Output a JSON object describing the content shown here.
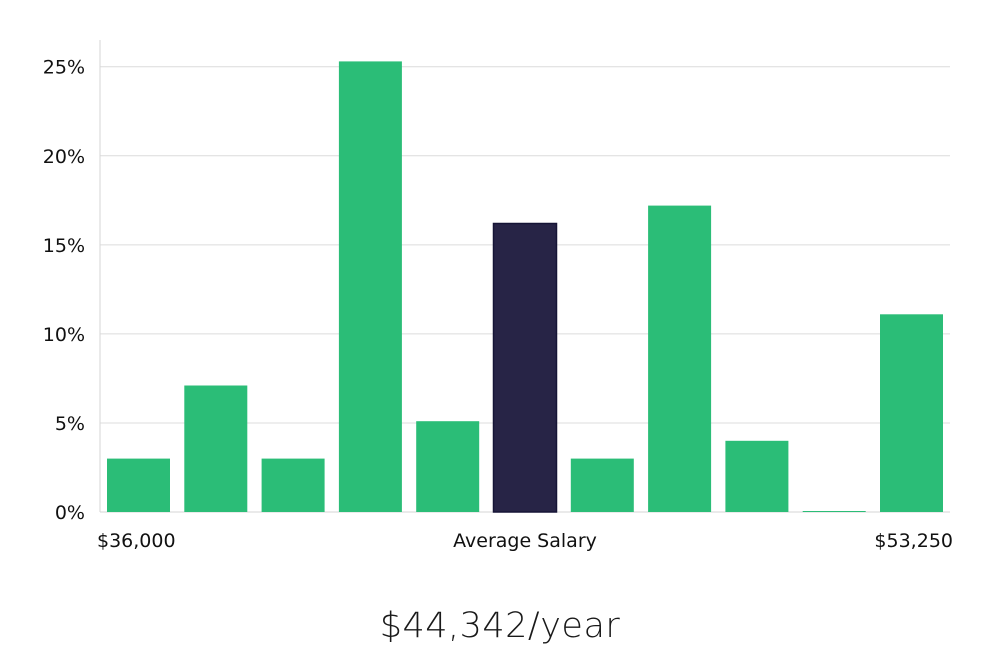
{
  "chart_data": {
    "type": "bar",
    "title": "",
    "xlabel": "Average Salary",
    "ylabel": "",
    "x_range_labels": {
      "min": "$36,000",
      "max": "$53,250"
    },
    "ylim": [
      0,
      26.5
    ],
    "yticks": [
      0,
      5,
      10,
      15,
      20,
      25
    ],
    "ytick_labels": [
      "0%",
      "5%",
      "10%",
      "15%",
      "20%",
      "25%"
    ],
    "grid": true,
    "values": [
      3,
      7.1,
      3,
      25.3,
      5.1,
      16.2,
      3,
      17.2,
      4,
      0.05,
      11.1
    ],
    "highlight_index": 5,
    "colors": {
      "bar": "#2bbd77",
      "highlight": "#272446",
      "highlight_border": "#161436",
      "grid": "#dcdcdc",
      "axis": "#d6d6d6"
    }
  },
  "summary": {
    "salary_text": "$44,342/year"
  }
}
